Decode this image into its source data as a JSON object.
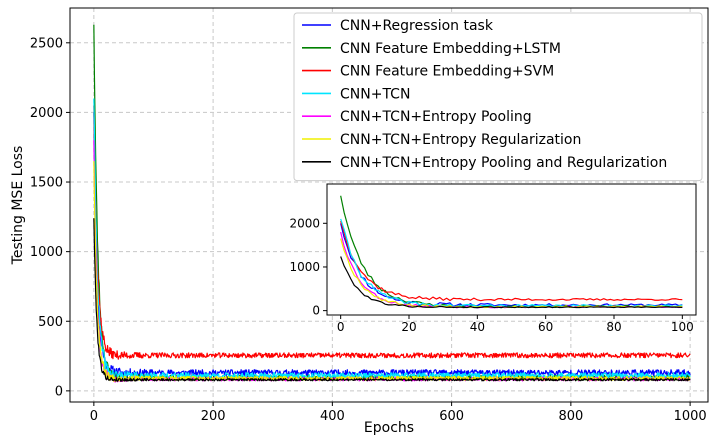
{
  "chart_data": [
    {
      "type": "line",
      "role": "main",
      "title": "",
      "xlabel": "Epochs",
      "ylabel": "Testing MSE Loss",
      "xlim": [
        -40,
        1030
      ],
      "ylim": [
        -80,
        2750
      ],
      "xticks": [
        0,
        200,
        400,
        600,
        800,
        1000
      ],
      "yticks": [
        0,
        500,
        1000,
        1500,
        2000,
        2500
      ],
      "grid": true,
      "legend": "top-right",
      "series": [
        {
          "name": "CNN+Regression task",
          "color": "#0000ff",
          "start": 2000,
          "plateau": 130,
          "decay": 6,
          "noise": 22,
          "seed": 11
        },
        {
          "name": "CNN Feature Embedding+LSTM",
          "color": "#008000",
          "start": 2630,
          "plateau": 95,
          "decay": 6.5,
          "noise": 18,
          "seed": 23
        },
        {
          "name": "CNN Feature Embedding+SVM",
          "color": "#ff0000",
          "start": 2050,
          "plateau": 255,
          "decay": 6,
          "noise": 18,
          "seed": 37
        },
        {
          "name": "CNN+TCN",
          "color": "#00e5ff",
          "start": 2100,
          "plateau": 110,
          "decay": 6,
          "noise": 20,
          "seed": 41
        },
        {
          "name": "CNN+TCN+Entropy Pooling",
          "color": "#ff00ff",
          "start": 1800,
          "plateau": 85,
          "decay": 5.5,
          "noise": 14,
          "seed": 53
        },
        {
          "name": "CNN+TCN+Entropy Regularization",
          "color": "#f0f000",
          "start": 1650,
          "plateau": 90,
          "decay": 5.5,
          "noise": 14,
          "seed": 67
        },
        {
          "name": "CNN+TCN+Entropy Pooling and Regularization",
          "color": "#000000",
          "start": 1240,
          "plateau": 80,
          "decay": 5,
          "noise": 8,
          "seed": 79
        }
      ]
    },
    {
      "type": "line",
      "role": "inset",
      "title": "",
      "xlabel": "",
      "ylabel": "",
      "x_range_shown": [
        0,
        100
      ],
      "xlim": [
        -4,
        104
      ],
      "ylim": [
        -100,
        2900
      ],
      "xticks": [
        0,
        20,
        40,
        60,
        80,
        100
      ],
      "yticks": [
        0,
        1000,
        2000
      ],
      "grid": false,
      "series_ref": "main"
    }
  ]
}
